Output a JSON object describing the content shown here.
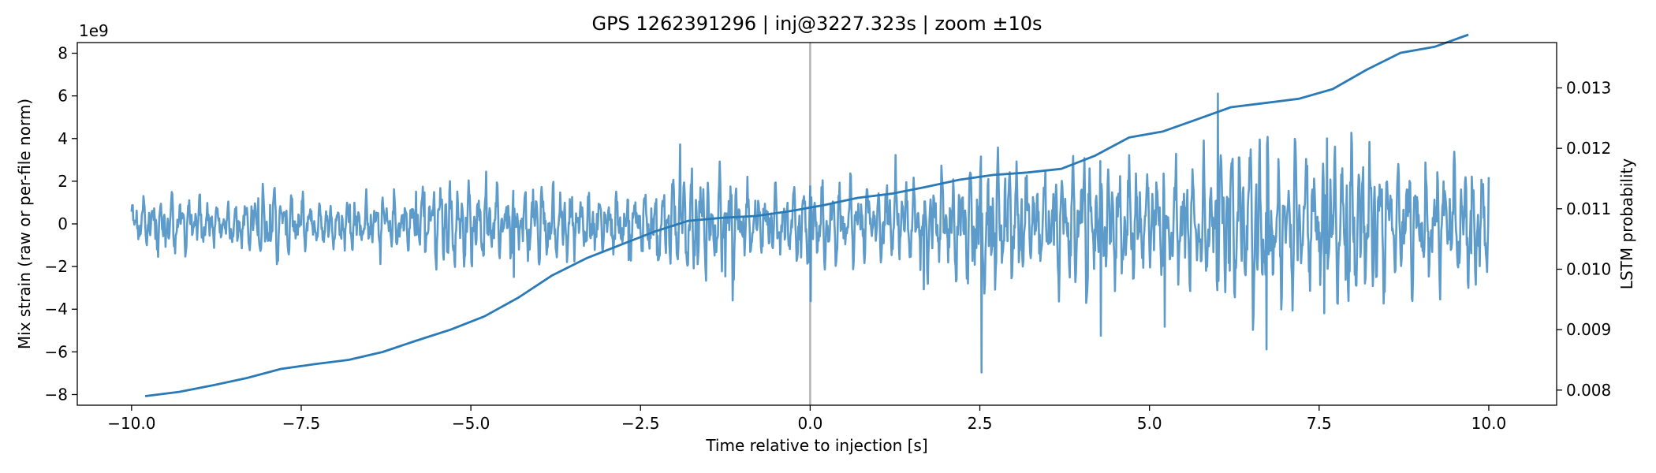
{
  "chart_data": {
    "type": "line",
    "title": "GPS 1262391296 | inj@3227.323s | zoom ±10s",
    "xlabel": "Time relative to injection [s]",
    "ylabel_left": "Mix strain (raw or per-file norm)",
    "ylabel_right": "LSTM probability",
    "left_axis_multiplier": "1e9",
    "xlim": [
      -10.8,
      11.0
    ],
    "ylim_left": [
      -8.5,
      8.5
    ],
    "ylim_right": [
      0.00775,
      0.01375
    ],
    "x_ticks": [
      -10.0,
      -7.5,
      -5.0,
      -2.5,
      0.0,
      2.5,
      5.0,
      7.5,
      10.0
    ],
    "x_tick_labels": [
      "−10.0",
      "−7.5",
      "−5.0",
      "−2.5",
      "0.0",
      "2.5",
      "5.0",
      "7.5",
      "10.0"
    ],
    "y_left_ticks": [
      -8,
      -6,
      -4,
      -2,
      0,
      2,
      4,
      6,
      8
    ],
    "y_left_tick_labels": [
      "−8",
      "−6",
      "−4",
      "−2",
      "0",
      "2",
      "4",
      "6",
      "8"
    ],
    "y_right_ticks": [
      0.008,
      0.009,
      0.01,
      0.011,
      0.012,
      0.013
    ],
    "y_right_tick_labels": [
      "0.008",
      "0.009",
      "0.010",
      "0.011",
      "0.012",
      "0.013"
    ],
    "grid": false,
    "marker_line_x": 0.0,
    "colors": {
      "strain": "#4a90c4",
      "probability": "#2a7ab8",
      "marker": "#b4b4b4"
    },
    "strain_series": {
      "x_start": -10.0,
      "x_end": 10.0,
      "envelope": [
        [
          -10.0,
          0.8
        ],
        [
          -9.5,
          1.2
        ],
        [
          -9.0,
          0.9
        ],
        [
          -8.5,
          0.8
        ],
        [
          -8.0,
          1.4
        ],
        [
          -7.5,
          1.1
        ],
        [
          -7.0,
          1.0
        ],
        [
          -6.5,
          1.1
        ],
        [
          -6.0,
          0.9
        ],
        [
          -5.5,
          1.6
        ],
        [
          -5.0,
          1.5
        ],
        [
          -4.5,
          1.1
        ],
        [
          -4.0,
          1.7
        ],
        [
          -3.5,
          1.2
        ],
        [
          -3.0,
          1.1
        ],
        [
          -2.5,
          1.3
        ],
        [
          -2.0,
          1.8
        ],
        [
          -1.5,
          2.2
        ],
        [
          -1.0,
          1.4
        ],
        [
          -0.5,
          1.3
        ],
        [
          0.0,
          1.8
        ],
        [
          0.5,
          1.6
        ],
        [
          1.0,
          1.4
        ],
        [
          1.5,
          1.5
        ],
        [
          2.0,
          2.0
        ],
        [
          2.5,
          2.6
        ],
        [
          3.0,
          2.2
        ],
        [
          3.5,
          1.9
        ],
        [
          4.0,
          2.8
        ],
        [
          4.5,
          2.4
        ],
        [
          5.0,
          2.0
        ],
        [
          5.5,
          2.3
        ],
        [
          6.0,
          2.5
        ],
        [
          6.5,
          3.4
        ],
        [
          7.0,
          2.6
        ],
        [
          7.5,
          2.5
        ],
        [
          8.0,
          3.3
        ],
        [
          8.5,
          2.4
        ],
        [
          9.0,
          2.2
        ],
        [
          9.5,
          2.1
        ],
        [
          10.0,
          2.3
        ]
      ]
    },
    "probability_series": {
      "x": [
        -9.8,
        -9.3,
        -8.8,
        -8.3,
        -7.8,
        -7.3,
        -6.8,
        -6.3,
        -5.8,
        -5.3,
        -4.8,
        -4.3,
        -3.8,
        -3.3,
        -2.8,
        -2.3,
        -1.8,
        -1.3,
        -0.8,
        -0.3,
        0.2,
        0.7,
        1.2,
        1.7,
        2.2,
        2.7,
        3.2,
        3.7,
        4.2,
        4.7,
        5.2,
        5.7,
        6.2,
        6.7,
        7.2,
        7.7,
        8.2,
        8.7,
        9.2,
        9.7
      ],
      "y": [
        0.0079,
        0.00797,
        0.00808,
        0.0082,
        0.00835,
        0.00843,
        0.0085,
        0.00863,
        0.00882,
        0.009,
        0.00922,
        0.00953,
        0.0099,
        0.01018,
        0.0104,
        0.01062,
        0.0108,
        0.01085,
        0.01088,
        0.01096,
        0.01106,
        0.01118,
        0.01125,
        0.01136,
        0.01148,
        0.01156,
        0.0116,
        0.01166,
        0.01188,
        0.01218,
        0.01228,
        0.01248,
        0.01268,
        0.01275,
        0.01282,
        0.01298,
        0.0133,
        0.01358,
        0.01368,
        0.01388
      ]
    }
  }
}
